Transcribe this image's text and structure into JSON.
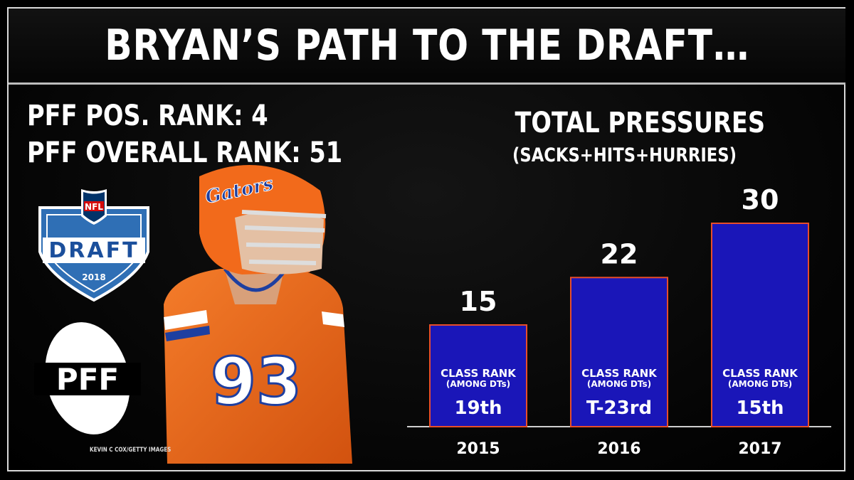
{
  "header": {
    "title": "BRYAN’S PATH TO THE DRAFT…"
  },
  "ranks": {
    "position": "PFF POS. RANK: 4",
    "overall": "PFF OVERALL RANK: 51"
  },
  "logos": {
    "nfl_badge": "NFL",
    "draft_word": "DRAFT",
    "draft_year": "2018",
    "pff": "PFF"
  },
  "player": {
    "helmet_text": "Gators",
    "jersey_number": "93"
  },
  "photo_credit": "KEVIN C COX/GETTY IMAGES",
  "colors": {
    "bar_fill": "#1a16b8",
    "bar_stroke": "#e84e2a",
    "jersey": "#f26a1b",
    "gators_blue": "#1e3fa0",
    "draft_blue": "#1b4f9c"
  },
  "chart_data": {
    "type": "bar",
    "title": "TOTAL PRESSURES",
    "subtitle": "(SACKS+HITS+HURRIES)",
    "categories": [
      "2015",
      "2016",
      "2017"
    ],
    "values": [
      15,
      22,
      30
    ],
    "ylim": [
      0,
      30
    ],
    "grid": false,
    "legend": "none",
    "bar_label_line1": "CLASS RANK",
    "bar_label_line2": "(AMONG DTs)",
    "class_ranks": [
      "19th",
      "T-23rd",
      "15th"
    ]
  }
}
